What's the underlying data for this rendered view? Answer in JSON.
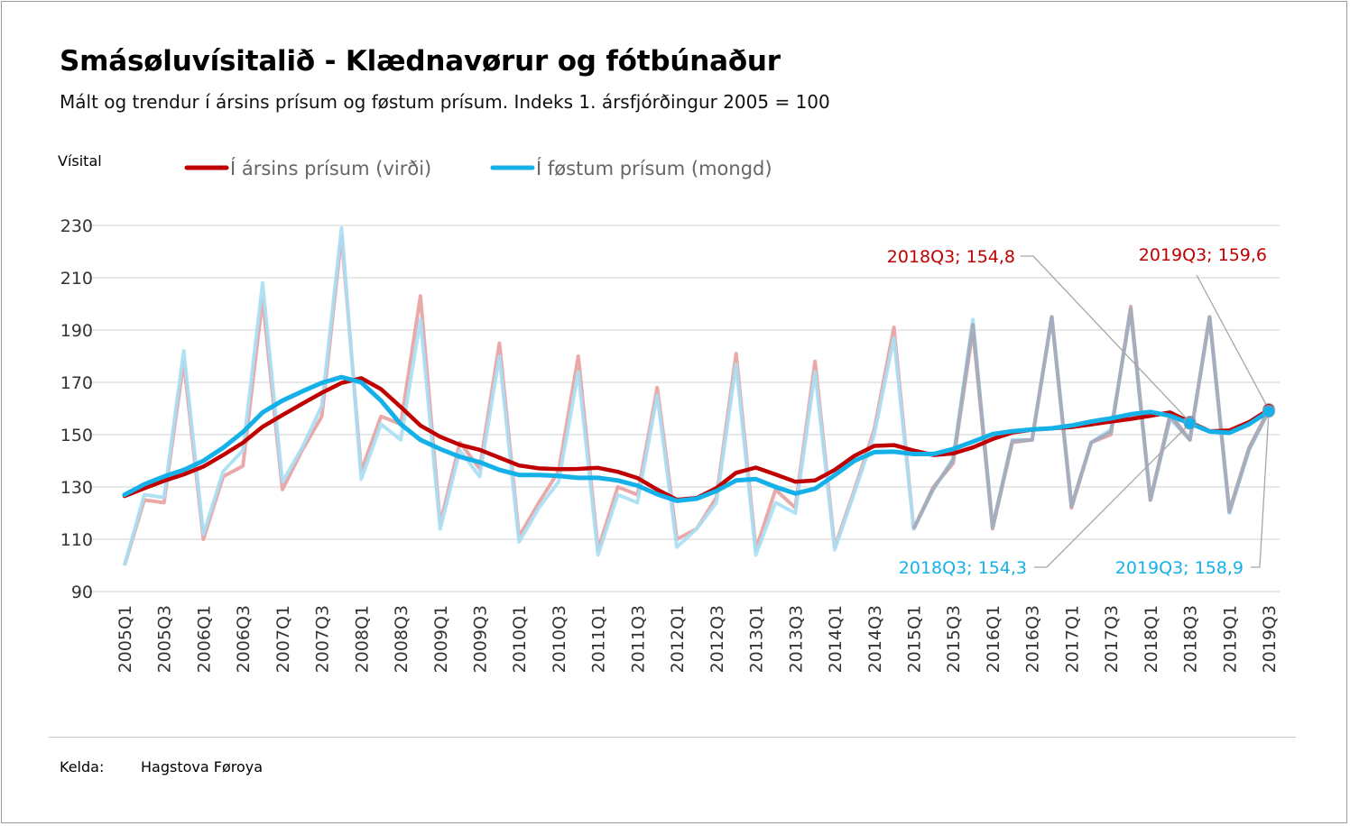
{
  "title": "Smásøluvísitalið - Klædnavørur og fótbúnaður",
  "subtitle": "Mált og trendur í ársins prísum og føstum prísum. Indeks 1. ársfjórðingur 2005 = 100",
  "source_label": "Kelda:",
  "source_value": "Hagstova Føroya",
  "colors": {
    "nominal": "#c00000",
    "nominal_raw": "#e8a0a0",
    "real": "#14b0e8",
    "real_raw": "#a8def4",
    "overlap": "#a6aebd",
    "grid": "#d9d9d9"
  },
  "chart_data": {
    "type": "line",
    "ylabel": "Vísital",
    "ylim": [
      90,
      230
    ],
    "yticks": [
      90,
      110,
      130,
      150,
      170,
      190,
      210,
      230
    ],
    "grid": true,
    "legend_position": "top",
    "x": [
      "2005Q1",
      "2005Q2",
      "2005Q3",
      "2005Q4",
      "2006Q1",
      "2006Q2",
      "2006Q3",
      "2006Q4",
      "2007Q1",
      "2007Q2",
      "2007Q3",
      "2007Q4",
      "2008Q1",
      "2008Q2",
      "2008Q3",
      "2008Q4",
      "2009Q1",
      "2009Q2",
      "2009Q3",
      "2009Q4",
      "2010Q1",
      "2010Q2",
      "2010Q3",
      "2010Q4",
      "2011Q1",
      "2011Q2",
      "2011Q3",
      "2011Q4",
      "2012Q1",
      "2012Q2",
      "2012Q3",
      "2012Q4",
      "2013Q1",
      "2013Q2",
      "2013Q3",
      "2013Q4",
      "2014Q1",
      "2014Q2",
      "2014Q3",
      "2014Q4",
      "2015Q1",
      "2015Q2",
      "2015Q3",
      "2015Q4",
      "2016Q1",
      "2016Q2",
      "2016Q3",
      "2016Q4",
      "2017Q1",
      "2017Q2",
      "2017Q3",
      "2017Q4",
      "2018Q1",
      "2018Q2",
      "2018Q3",
      "2018Q4",
      "2019Q1",
      "2019Q2",
      "2019Q3"
    ],
    "xtick_labels": [
      "2005Q1",
      "2005Q3",
      "2006Q1",
      "2006Q3",
      "2007Q1",
      "2007Q3",
      "2008Q1",
      "2008Q3",
      "2009Q1",
      "2009Q3",
      "2010Q1",
      "2010Q3",
      "2011Q1",
      "2011Q3",
      "2012Q1",
      "2012Q3",
      "2013Q1",
      "2013Q3",
      "2014Q1",
      "2014Q3",
      "2015Q1",
      "2015Q3",
      "2016Q1",
      "2016Q3",
      "2017Q1",
      "2017Q3",
      "2018Q1",
      "2018Q3",
      "2019Q1",
      "2019Q3"
    ],
    "series": [
      {
        "name": "",
        "kind": "measured",
        "role": "nominal",
        "values": [
          100,
          125,
          124,
          178,
          110,
          134,
          138,
          202,
          129,
          144,
          157,
          226,
          136,
          157,
          154,
          203,
          116,
          147,
          137,
          185,
          111,
          124,
          136,
          180,
          106,
          130,
          127,
          168,
          110,
          114,
          126,
          181,
          106,
          129,
          122,
          178,
          107,
          129,
          152,
          191,
          114,
          130,
          139,
          190,
          114,
          147,
          148,
          195,
          122,
          147,
          150,
          199,
          125,
          158,
          148,
          195,
          121,
          145,
          159.6
        ]
      },
      {
        "name": "",
        "kind": "measured",
        "role": "real",
        "values": [
          100,
          127,
          126,
          182,
          112,
          136,
          144,
          208,
          132,
          145,
          161,
          229,
          133,
          154,
          148,
          194,
          114,
          144,
          134,
          180,
          109,
          122,
          132,
          174,
          104,
          127,
          124,
          165,
          107,
          114,
          124,
          177,
          104,
          124,
          120,
          174,
          106,
          128,
          150,
          187,
          114,
          129,
          141,
          194,
          115,
          148,
          148,
          195,
          123,
          147,
          152,
          197,
          125,
          156,
          148,
          195,
          120,
          144,
          158.9
        ]
      },
      {
        "name": "Í ársins prísum (virði)",
        "kind": "trend",
        "role": "nominal",
        "values": [
          126.5,
          129.5,
          132.3,
          134.8,
          137.8,
          142.2,
          146.9,
          153,
          157.5,
          161.8,
          166,
          169.8,
          171.6,
          167.4,
          160.6,
          153.5,
          149.2,
          146.1,
          144.2,
          141.2,
          138.2,
          137.1,
          136.8,
          136.9,
          137.3,
          135.8,
          133.4,
          129,
          125.1,
          125.8,
          129.6,
          135.4,
          137.4,
          134.8,
          132,
          132.5,
          136.5,
          141.9,
          145.7,
          146,
          143.9,
          142.2,
          142.8,
          145.1,
          148.3,
          150.8,
          151.9,
          152.4,
          152.9,
          153.9,
          155,
          156,
          157.2,
          158.5,
          154.8,
          151.3,
          151.6,
          154.8,
          159.6
        ]
      },
      {
        "name": "Í føstum prísum (mongd)",
        "kind": "trend",
        "role": "real",
        "values": [
          127,
          131,
          134,
          136.5,
          140,
          145,
          151,
          158.5,
          163,
          166.5,
          169.8,
          172,
          170,
          163,
          154,
          148,
          144.5,
          141.5,
          139.5,
          136.5,
          134.6,
          134.6,
          134.2,
          133.5,
          133.5,
          132.5,
          130.5,
          127.2,
          124.7,
          125.5,
          128.5,
          132.5,
          133,
          130,
          127.5,
          129.3,
          134.5,
          140,
          143.3,
          143.5,
          142.6,
          142.6,
          144.5,
          147.3,
          150.2,
          151.3,
          152,
          152.4,
          153.5,
          155,
          156.2,
          157.8,
          158.7,
          157.2,
          154.3,
          151.2,
          150.7,
          154,
          158.9
        ]
      }
    ],
    "annotations": [
      {
        "text": "2018Q3; 154,8",
        "x": "2018Q3",
        "y": 154.8,
        "series": "nominal"
      },
      {
        "text": "2019Q3; 159,6",
        "x": "2019Q3",
        "y": 159.6,
        "series": "nominal"
      },
      {
        "text": "2018Q3; 154,3",
        "x": "2018Q3",
        "y": 154.3,
        "series": "real"
      },
      {
        "text": "2019Q3; 158,9",
        "x": "2019Q3",
        "y": 158.9,
        "series": "real"
      }
    ]
  }
}
